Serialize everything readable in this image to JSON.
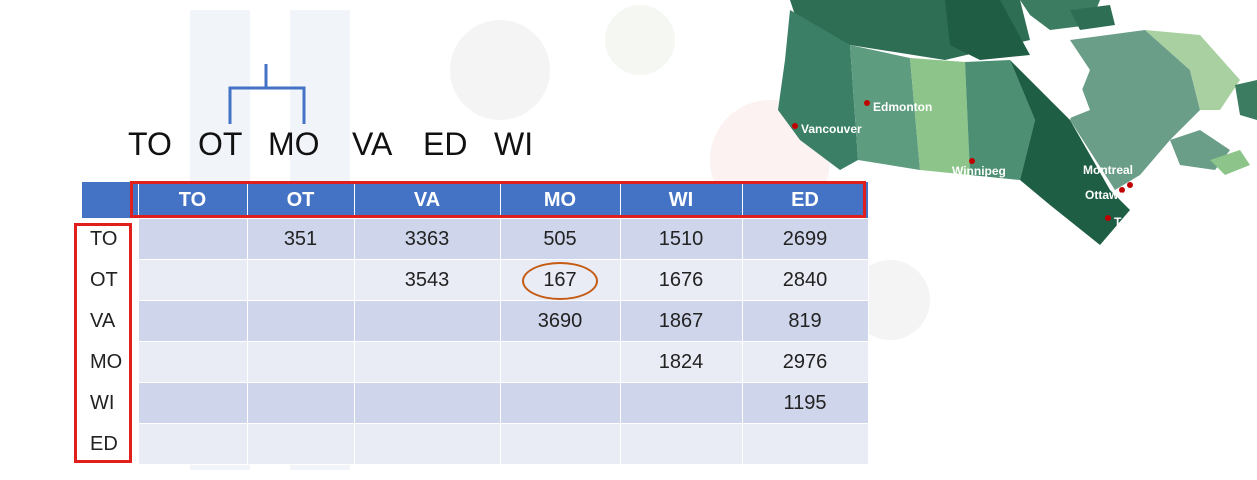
{
  "sequence": [
    "TO",
    "OT",
    "MO",
    "VA",
    "ED",
    "WI"
  ],
  "table": {
    "columns": [
      "TO",
      "OT",
      "VA",
      "MO",
      "WI",
      "ED"
    ],
    "rows": [
      {
        "label": "TO",
        "cells": [
          "",
          "351",
          "3363",
          "505",
          "1510",
          "2699"
        ]
      },
      {
        "label": "OT",
        "cells": [
          "",
          "",
          "3543",
          "167",
          "1676",
          "2840"
        ]
      },
      {
        "label": "VA",
        "cells": [
          "",
          "",
          "",
          "3690",
          "1867",
          "819"
        ]
      },
      {
        "label": "MO",
        "cells": [
          "",
          "",
          "",
          "",
          "1824",
          "2976"
        ]
      },
      {
        "label": "WI",
        "cells": [
          "",
          "",
          "",
          "",
          "",
          "1195"
        ]
      },
      {
        "label": "ED",
        "cells": [
          "",
          "",
          "",
          "",
          "",
          ""
        ]
      }
    ],
    "highlighted_value": "167"
  },
  "map": {
    "cities": [
      "Edmonton",
      "Vancouver",
      "Winnipeg",
      "Montreal",
      "Ottawa",
      "Toronto"
    ]
  },
  "colors": {
    "header_blue": "#4472c4",
    "highlight_red": "#e0201d",
    "ring_orange": "#c55a11",
    "dendrogram_blue": "#4472c4"
  }
}
